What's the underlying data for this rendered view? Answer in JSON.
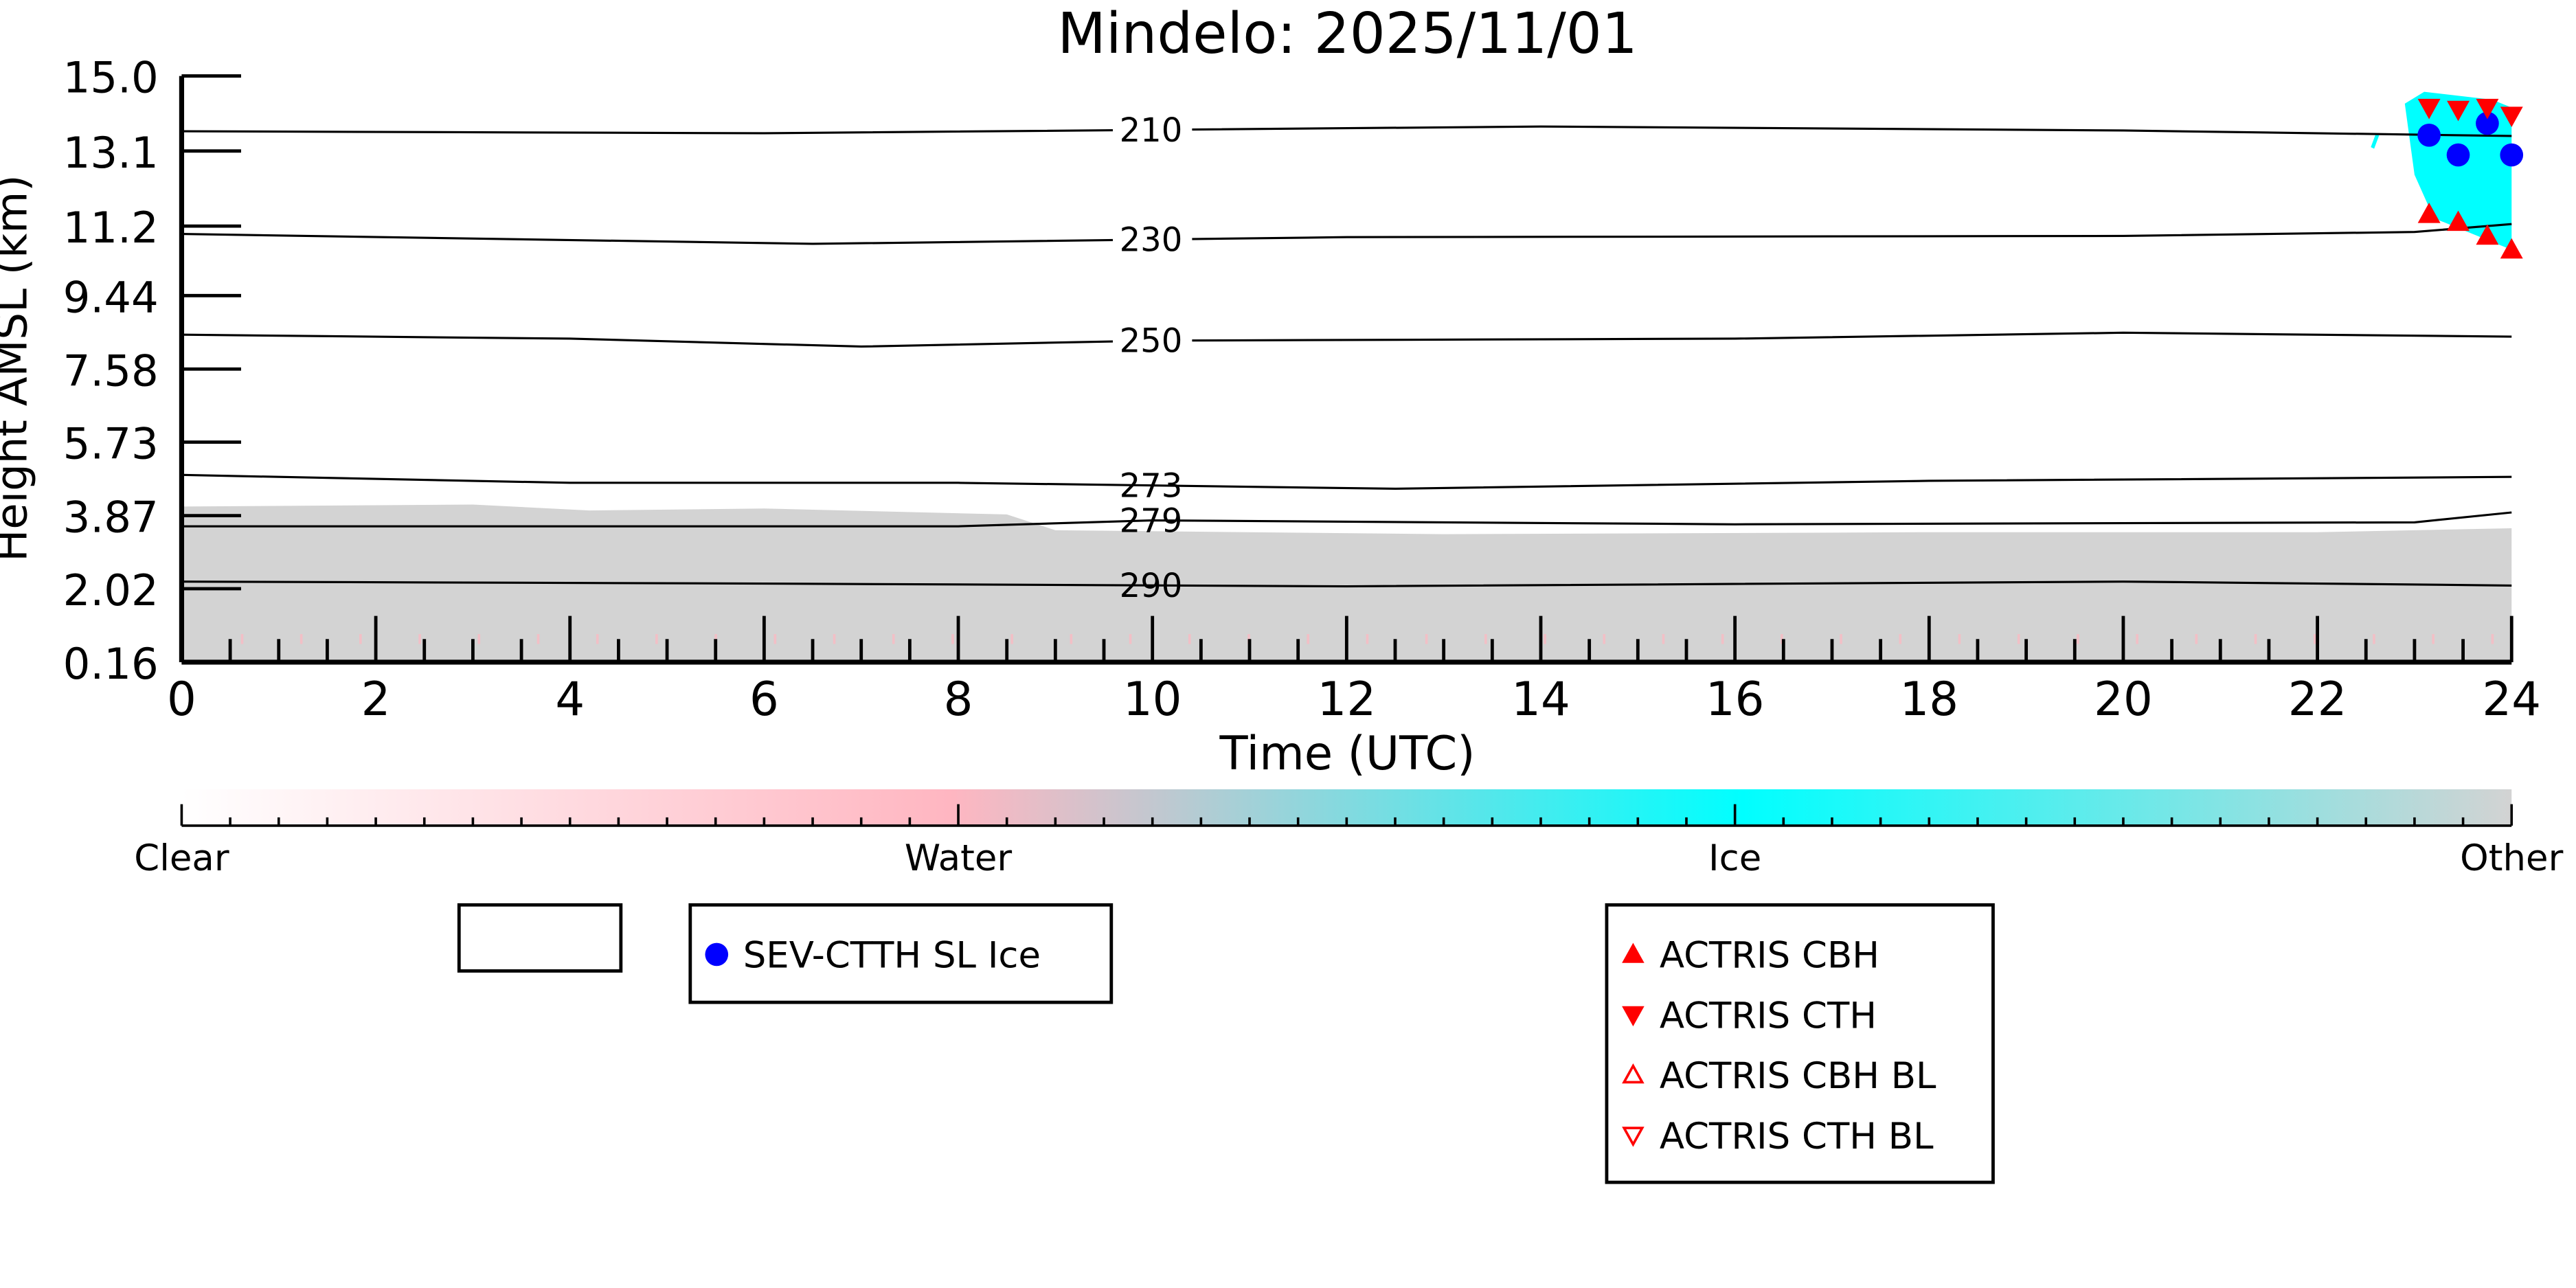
{
  "chart_data": {
    "type": "heatmap",
    "title": "Mindelo: 2025/11/01",
    "xlabel": "Time (UTC)",
    "ylabel": "Height AMSL (km)",
    "xlim": [
      0,
      24
    ],
    "ylim": [
      0.16,
      15.0
    ],
    "xticks": [
      "0",
      "2",
      "4",
      "6",
      "8",
      "10",
      "12",
      "14",
      "16",
      "18",
      "20",
      "22",
      "24"
    ],
    "yticks": [
      "0.16",
      "2.02",
      "3.87",
      "5.73",
      "7.58",
      "9.44",
      "11.2",
      "13.1",
      "15.0"
    ],
    "colorbar": {
      "labels": [
        "Clear",
        "Water",
        "Ice",
        "Other"
      ],
      "colors": [
        "#ffffff",
        "#ffb6c1",
        "#00ffff",
        "#d3d3d3"
      ]
    },
    "other_region": {
      "top_km": [
        [
          0,
          4.1
        ],
        [
          3,
          4.15
        ],
        [
          4.2,
          4.0
        ],
        [
          6,
          4.05
        ],
        [
          8.5,
          3.9
        ],
        [
          9,
          3.5
        ],
        [
          13,
          3.4
        ],
        [
          18,
          3.45
        ],
        [
          22,
          3.45
        ],
        [
          24,
          3.55
        ]
      ]
    },
    "ice_region": {
      "t_start": 22.9,
      "t_end": 24,
      "base_km": 10.6,
      "top_km": 14.6
    },
    "contours": [
      {
        "label": "210",
        "points": [
          [
            0,
            13.6
          ],
          [
            6,
            13.55
          ],
          [
            14,
            13.72
          ],
          [
            20,
            13.62
          ],
          [
            24,
            13.48
          ]
        ]
      },
      {
        "label": "230",
        "points": [
          [
            0,
            11.0
          ],
          [
            6.5,
            10.75
          ],
          [
            12,
            10.92
          ],
          [
            20,
            10.95
          ],
          [
            23,
            11.05
          ],
          [
            24,
            11.25
          ]
        ]
      },
      {
        "label": "250",
        "points": [
          [
            0,
            8.45
          ],
          [
            4,
            8.35
          ],
          [
            7,
            8.15
          ],
          [
            10,
            8.3
          ],
          [
            16,
            8.35
          ],
          [
            20,
            8.5
          ],
          [
            24,
            8.4
          ]
        ]
      },
      {
        "label": "273",
        "points": [
          [
            0,
            4.9
          ],
          [
            4,
            4.7
          ],
          [
            8,
            4.7
          ],
          [
            12.5,
            4.55
          ],
          [
            18,
            4.75
          ],
          [
            24,
            4.85
          ]
        ]
      },
      {
        "label": "279",
        "points": [
          [
            0,
            3.6
          ],
          [
            8,
            3.6
          ],
          [
            10,
            3.75
          ],
          [
            16,
            3.65
          ],
          [
            23,
            3.7
          ],
          [
            24,
            3.95
          ]
        ]
      },
      {
        "label": "290",
        "points": [
          [
            0,
            2.2
          ],
          [
            6,
            2.15
          ],
          [
            12,
            2.08
          ],
          [
            20,
            2.2
          ],
          [
            24,
            2.1
          ]
        ]
      }
    ],
    "contour_label_time": 10,
    "series": [
      {
        "name": "SEV-CTTH SL Ice",
        "marker": "circle",
        "color": "#0000ff",
        "points": [
          [
            23.15,
            13.5
          ],
          [
            23.45,
            13.0
          ],
          [
            23.75,
            13.8
          ],
          [
            24,
            13.0
          ]
        ]
      },
      {
        "name": "ACTRIS CBH",
        "marker": "triangle-up",
        "color": "#ff0000",
        "points": [
          [
            23.15,
            11.5
          ],
          [
            23.45,
            11.3
          ],
          [
            23.75,
            10.95
          ],
          [
            24,
            10.6
          ]
        ]
      },
      {
        "name": "ACTRIS CTH",
        "marker": "triangle-down",
        "color": "#ff0000",
        "points": [
          [
            23.15,
            14.2
          ],
          [
            23.45,
            14.15
          ],
          [
            23.75,
            14.2
          ],
          [
            24,
            14.0
          ]
        ]
      },
      {
        "name": "ACTRIS CBH BL",
        "marker": "triangle-up-open",
        "color": "#ff0000",
        "points": []
      },
      {
        "name": "ACTRIS CTH BL",
        "marker": "triangle-down-open",
        "color": "#ff0000",
        "points": []
      }
    ]
  }
}
